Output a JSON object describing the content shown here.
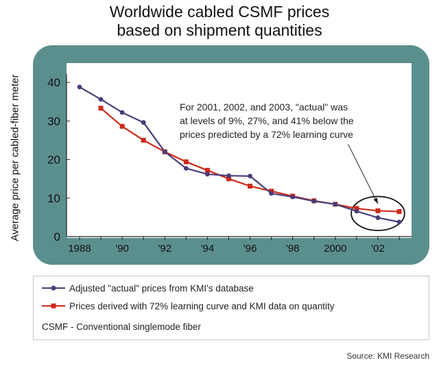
{
  "title_line1": "Worldwide cabled CSMF prices",
  "title_line2": "based on shipment quantities",
  "chart_data": {
    "type": "line",
    "ylabel": "Average price per cabled-fiber meter",
    "x_ticks": [
      "1988",
      "'90",
      "'92",
      "'94",
      "'96",
      "'98",
      "2000",
      "'02"
    ],
    "y_ticks": [
      "0",
      "10",
      "20",
      "30",
      "40"
    ],
    "ylim": [
      0,
      45
    ],
    "xlim": [
      1988,
      2003
    ],
    "grid": false,
    "series": [
      {
        "name": "Adjusted \"actual\" prices from KMI's database",
        "color": "#4b3c7a",
        "marker": "circle",
        "x": [
          1988,
          1989,
          1990,
          1991,
          1992,
          1993,
          1994,
          1995,
          1996,
          1997,
          1998,
          1999,
          2000,
          2001,
          2002,
          2003
        ],
        "y": [
          38.8,
          35.6,
          32.2,
          29.6,
          22.0,
          17.7,
          16.2,
          15.8,
          15.7,
          11.2,
          10.3,
          9.2,
          8.4,
          6.6,
          4.9,
          3.8
        ]
      },
      {
        "name": "Prices derived with 72% learning curve and KMI data on quantity",
        "color": "#cc2a18",
        "marker": "square",
        "x": [
          1989,
          1990,
          1991,
          1992,
          1993,
          1994,
          1995,
          1996,
          1997,
          1998,
          1999,
          2000,
          2001,
          2002,
          2003
        ],
        "y": [
          33.3,
          28.6,
          25.0,
          22.0,
          19.4,
          17.2,
          15.0,
          13.1,
          11.8,
          10.5,
          9.3,
          8.4,
          7.3,
          6.7,
          6.5
        ]
      }
    ],
    "annotation": {
      "lines": [
        "For 2001, 2002, and 2003, \"actual\" was",
        "at levels of 9%, 27%, and 41% below the",
        "prices predicted by a 72% learning curve"
      ],
      "arrow_from": [
        2000.6,
        24
      ],
      "arrow_to": [
        2002.0,
        8.5
      ],
      "ellipse_center": [
        2002.0,
        6.0
      ],
      "ellipse_radius": [
        1.25,
        4.4
      ]
    },
    "note": "CSMF - Conventional singlemode fiber"
  },
  "source": "Source: KMI Research",
  "colors": {
    "panel": "#5b8f8e",
    "plot_bg": "#ffffff",
    "actual_series": "#4b3c7a",
    "learning_series": "#cc2a18"
  }
}
